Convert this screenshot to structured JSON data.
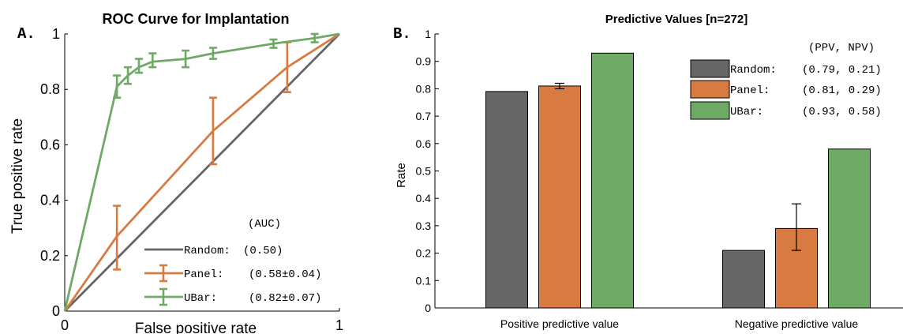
{
  "colors": {
    "random": "#666666",
    "panel": "#d77b42",
    "ubar": "#6fa966",
    "axis": "#000000"
  },
  "chart_data": [
    {
      "panel_label": "A.",
      "type": "line",
      "title": "ROC Curve for Implantation",
      "xlabel": "False positive rate",
      "ylabel": "True positive rate",
      "xlim": [
        0,
        1
      ],
      "ylim": [
        0,
        1
      ],
      "xticks": [
        "0",
        "1"
      ],
      "yticks": [
        "0",
        "0.2",
        "0.4",
        "0.6",
        "0.8",
        "1"
      ],
      "grid": false,
      "legend_header": "(AUC)",
      "legend_placement": "bottom-right",
      "series": [
        {
          "name": "Random:",
          "legend_value": "(0.50)",
          "color_key": "random",
          "points": [
            [
              0,
              0
            ],
            [
              1,
              1
            ]
          ]
        },
        {
          "name": "Panel:",
          "legend_value": "(0.58±0.04)",
          "color_key": "panel",
          "points": [
            [
              0,
              0
            ],
            [
              0.19,
              0.27
            ],
            [
              0.54,
              0.65
            ],
            [
              0.81,
              0.88
            ],
            [
              1,
              1
            ]
          ],
          "errors": [
            [
              0.19,
              0.15,
              0.38
            ],
            [
              0.54,
              0.53,
              0.77
            ],
            [
              0.81,
              0.79,
              0.97
            ]
          ]
        },
        {
          "name": "UBar:",
          "legend_value": "(0.82±0.07)",
          "color_key": "ubar",
          "points": [
            [
              0,
              0
            ],
            [
              0.19,
              0.81
            ],
            [
              0.23,
              0.85
            ],
            [
              0.27,
              0.88
            ],
            [
              0.32,
              0.9
            ],
            [
              0.44,
              0.91
            ],
            [
              0.54,
              0.93
            ],
            [
              0.76,
              0.965
            ],
            [
              0.91,
              0.985
            ],
            [
              1,
              1
            ]
          ],
          "errors": [
            [
              0.19,
              0.77,
              0.85
            ],
            [
              0.23,
              0.82,
              0.88
            ],
            [
              0.27,
              0.86,
              0.91
            ],
            [
              0.32,
              0.88,
              0.93
            ],
            [
              0.44,
              0.88,
              0.94
            ],
            [
              0.54,
              0.91,
              0.95
            ],
            [
              0.76,
              0.95,
              0.98
            ],
            [
              0.91,
              0.97,
              1.0
            ]
          ]
        }
      ]
    },
    {
      "panel_label": "B.",
      "type": "bar",
      "title": "Predictive Values [n=272]",
      "xlabel": "",
      "ylabel": "Rate",
      "ylim": [
        0,
        1
      ],
      "yticks": [
        "0",
        "0.1",
        "0.2",
        "0.3",
        "0.4",
        "0.5",
        "0.6",
        "0.7",
        "0.8",
        "0.9",
        "1"
      ],
      "grid": false,
      "categories": [
        "Positive predictive value",
        "Negative predictive value"
      ],
      "legend_header": "(PPV, NPV)",
      "legend_placement": "top-right",
      "series": [
        {
          "name": "Random:",
          "legend_value": "(0.79, 0.21)",
          "color_key": "random",
          "values": [
            0.79,
            0.21
          ],
          "errors": [
            null,
            null
          ]
        },
        {
          "name": "Panel:",
          "legend_value": "(0.81, 0.29)",
          "color_key": "panel",
          "values": [
            0.81,
            0.29
          ],
          "errors": [
            [
              0.8,
              0.82
            ],
            [
              0.21,
              0.38
            ]
          ]
        },
        {
          "name": "UBar:",
          "legend_value": "(0.93, 0.58)",
          "color_key": "ubar",
          "values": [
            0.93,
            0.58
          ],
          "errors": [
            null,
            null
          ]
        }
      ]
    }
  ]
}
